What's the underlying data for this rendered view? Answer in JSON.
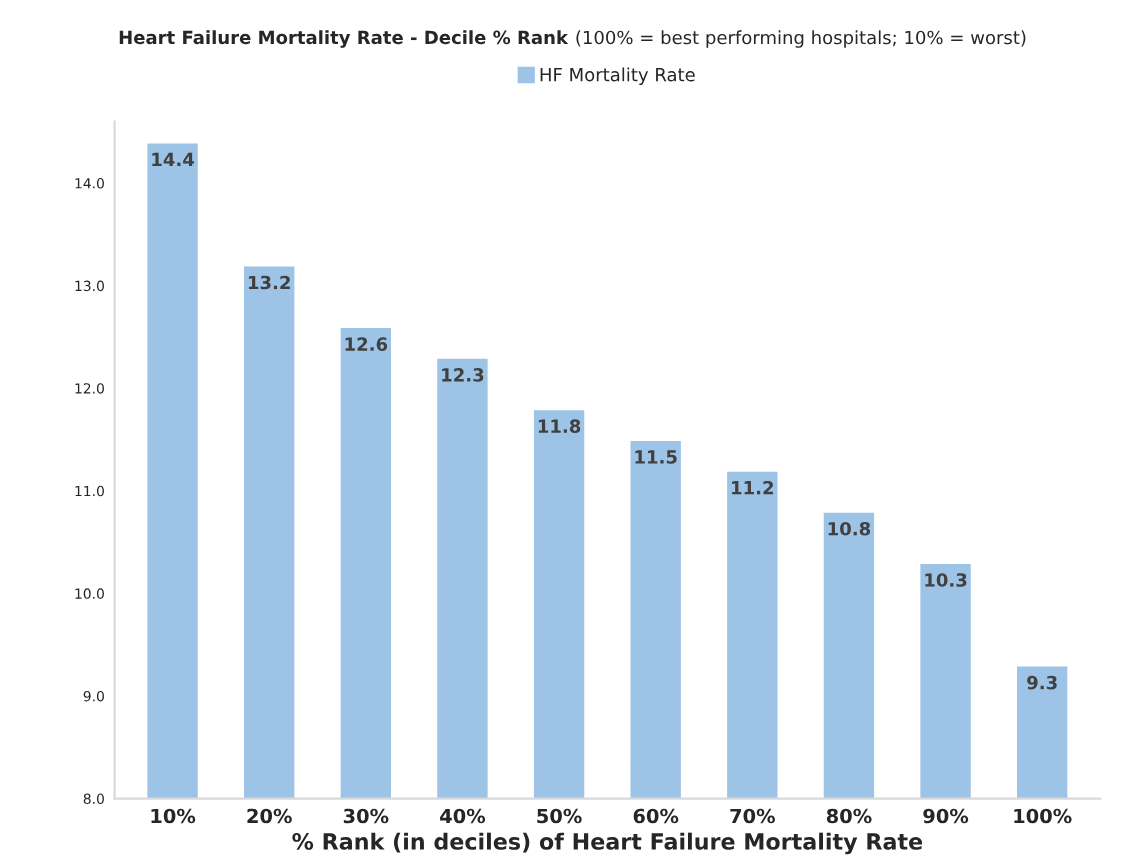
{
  "chart_data": {
    "type": "bar",
    "title": "Heart Failure Mortality Rate - Decile % Rank",
    "subtitle": "(100% = best performing hospitals; 10% = worst)",
    "xlabel": "% Rank (in deciles) of Heart Failure Mortality Rate",
    "categories": [
      "10%",
      "20%",
      "30%",
      "40%",
      "50%",
      "60%",
      "70%",
      "80%",
      "90%",
      "100%"
    ],
    "series": [
      {
        "name": "HF Mortality Rate",
        "color": "#9dc3e6",
        "values": [
          14.4,
          13.2,
          12.6,
          12.3,
          11.8,
          11.5,
          11.2,
          10.8,
          10.3,
          9.3
        ]
      }
    ],
    "ylim": [
      8,
      14.6
    ],
    "yticks": [
      {
        "value": 8,
        "label": "8.0"
      },
      {
        "value": 9,
        "label": "9.0"
      },
      {
        "value": 10,
        "label": "10.0"
      },
      {
        "value": 11,
        "label": "11.0"
      },
      {
        "value": 12,
        "label": "12.0"
      },
      {
        "value": 13,
        "label": "13.0"
      },
      {
        "value": 14,
        "label": "14.0"
      }
    ],
    "data_labels": true,
    "grid": false,
    "legend": "top"
  }
}
